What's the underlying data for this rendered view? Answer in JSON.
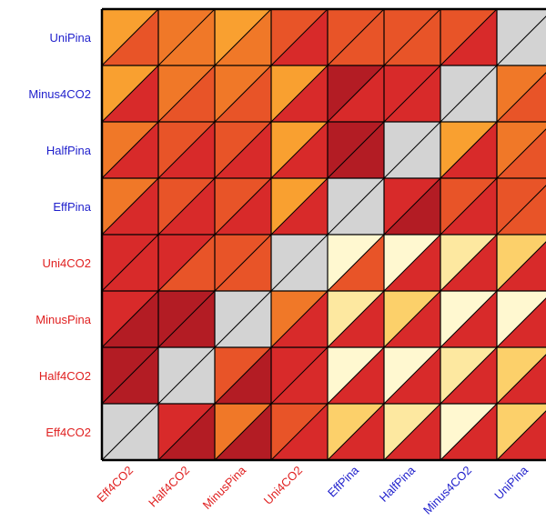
{
  "chart_data": {
    "type": "heatmap",
    "style": "split-triangle-matrix",
    "rows": [
      "UniPina",
      "Minus4CO2",
      "HalfPina",
      "EffPina",
      "Uni4CO2",
      "MinusPina",
      "Half4CO2",
      "Eff4CO2"
    ],
    "columns": [
      "Eff4CO2",
      "Half4CO2",
      "MinusPina",
      "Uni4CO2",
      "EffPina",
      "HalfPina",
      "Minus4CO2",
      "UniPina"
    ],
    "row_label_colors": [
      "#1f1fcc",
      "#1f1fcc",
      "#1f1fcc",
      "#1f1fcc",
      "#e02020",
      "#e02020",
      "#e02020",
      "#e02020"
    ],
    "column_label_colors": [
      "#e02020",
      "#e02020",
      "#e02020",
      "#e02020",
      "#1f1fcc",
      "#1f1fcc",
      "#1f1fcc",
      "#1f1fcc"
    ],
    "diagonal_color": "#d3d3d3",
    "color_scale": [
      "#fff8d0",
      "#fde8a0",
      "#fcd06a",
      "#f9a030",
      "#f07828",
      "#e85428",
      "#d82a2a",
      "#b31c24"
    ],
    "upper_left_triangles": [
      [
        3,
        4,
        3,
        5,
        5,
        5,
        5,
        null
      ],
      [
        3,
        4,
        4,
        3,
        7,
        6,
        null,
        4
      ],
      [
        4,
        5,
        5,
        3,
        7,
        null,
        3,
        4
      ],
      [
        4,
        5,
        5,
        3,
        null,
        6,
        5,
        5
      ],
      [
        6,
        6,
        5,
        null,
        0,
        0,
        1,
        2
      ],
      [
        6,
        7,
        null,
        4,
        1,
        2,
        0,
        0
      ],
      [
        7,
        null,
        5,
        6,
        0,
        0,
        1,
        2
      ],
      [
        null,
        6,
        4,
        5,
        2,
        1,
        0,
        2
      ]
    ],
    "lower_right_triangles": [
      [
        5,
        4,
        4,
        6,
        5,
        5,
        6,
        null
      ],
      [
        6,
        5,
        5,
        6,
        6,
        6,
        null,
        5
      ],
      [
        6,
        6,
        6,
        6,
        7,
        null,
        6,
        5
      ],
      [
        6,
        6,
        6,
        6,
        null,
        7,
        6,
        5
      ],
      [
        6,
        5,
        5,
        null,
        5,
        6,
        6,
        6
      ],
      [
        7,
        7,
        null,
        6,
        6,
        6,
        6,
        6
      ],
      [
        7,
        null,
        7,
        6,
        6,
        6,
        6,
        6
      ],
      [
        null,
        7,
        7,
        6,
        6,
        6,
        6,
        6
      ]
    ]
  }
}
